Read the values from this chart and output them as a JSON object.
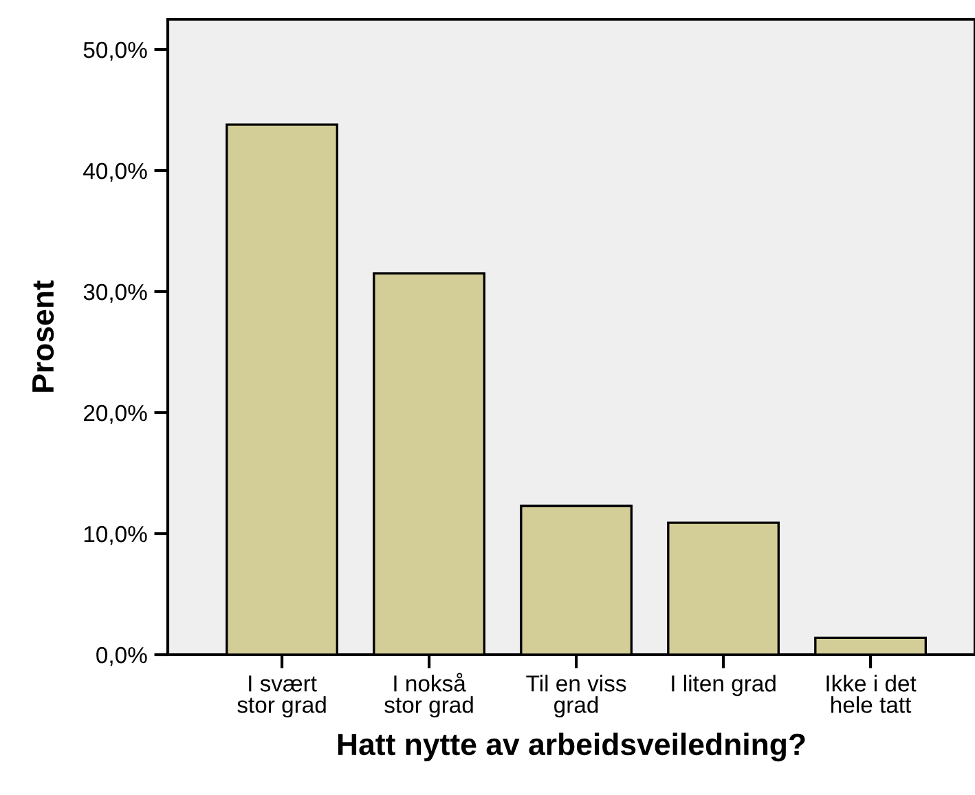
{
  "chart_data": {
    "type": "bar",
    "xlabel": "Hatt nytte av arbeidsveiledning?",
    "ylabel": "Prosent",
    "categories": [
      "I svært\nstor grad",
      "I nokså\nstor grad",
      "Til en viss\ngrad",
      "I liten grad",
      "Ikke i det\nhele tatt"
    ],
    "values": [
      43.8,
      31.5,
      12.3,
      10.9,
      1.4
    ],
    "color": "#d3ce97",
    "ylim": [
      0,
      52.5
    ],
    "yticks": [
      {
        "value": 0,
        "label": "0,0%"
      },
      {
        "value": 10,
        "label": "10,0%"
      },
      {
        "value": 20,
        "label": "20,0%"
      },
      {
        "value": 30,
        "label": "30,0%"
      },
      {
        "value": 40,
        "label": "40,0%"
      },
      {
        "value": 50,
        "label": "50,0%"
      }
    ],
    "grid": false
  }
}
